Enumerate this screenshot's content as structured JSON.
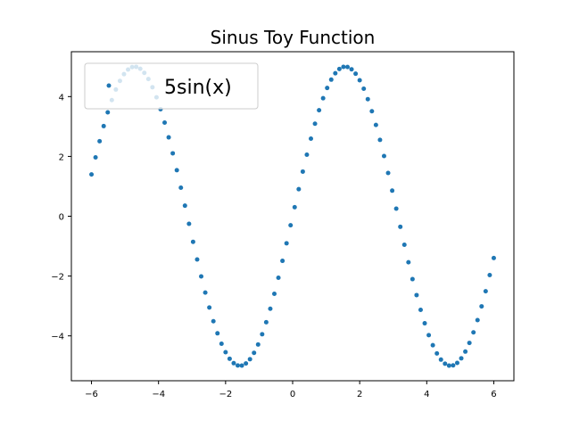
{
  "chart_data": {
    "type": "scatter",
    "title": "Sinus Toy Function",
    "xlabel": "",
    "ylabel": "",
    "xlim": [
      -6.6,
      6.6
    ],
    "ylim": [
      -5.5,
      5.5
    ],
    "xticks": [
      -6,
      -4,
      -2,
      0,
      2,
      4,
      6
    ],
    "yticks": [
      -4,
      -2,
      0,
      2,
      4
    ],
    "xtick_labels": [
      "−6",
      "−4",
      "−2",
      "0",
      "2",
      "4",
      "6"
    ],
    "ytick_labels": [
      "−4",
      "−2",
      "0",
      "2",
      "4"
    ],
    "legend": {
      "placement": "upper-left",
      "entries": [
        "5sin(x)"
      ]
    },
    "grid": false,
    "series": [
      {
        "name": "5sin(x)",
        "color": "#1f77b4",
        "x_range": [
          -6,
          6
        ],
        "point_count": 100,
        "amplitude": 5
      }
    ]
  }
}
